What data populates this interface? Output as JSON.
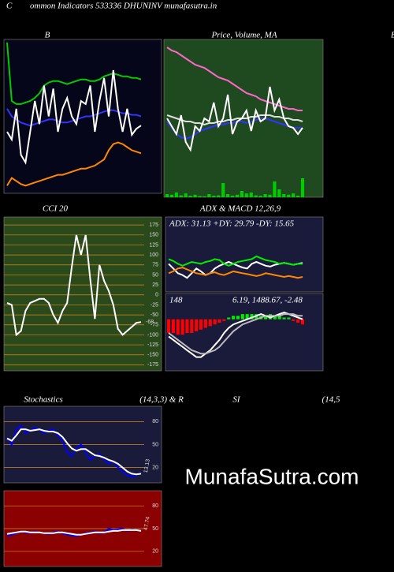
{
  "header": {
    "left": "C",
    "text": "ommon  Indicators 533336  DHUNINV munafasutra.in",
    "edge_label": "B"
  },
  "watermark": "MunafaSutra.com",
  "chart_data": [
    {
      "type": "line",
      "title": "B",
      "ylim": [
        0,
        100
      ],
      "series": [
        {
          "name": "Upper",
          "color": "#00cc00",
          "values": [
            98,
            60,
            58,
            58,
            59,
            60,
            62,
            65,
            70,
            72,
            73,
            73,
            72,
            71,
            72,
            73,
            74,
            74,
            73,
            73,
            74,
            76,
            77,
            78,
            77,
            76,
            76,
            75,
            75,
            74
          ]
        },
        {
          "name": "Middle",
          "color": "#3333ff",
          "values": [
            55,
            50,
            48,
            46,
            45,
            44,
            45,
            46,
            47,
            48,
            48,
            47,
            46,
            46,
            47,
            48,
            49,
            50,
            50,
            51,
            52,
            53,
            54,
            54,
            53,
            52,
            52,
            51,
            51,
            50
          ]
        },
        {
          "name": "Lower",
          "color": "#ff8800",
          "values": [
            5,
            10,
            8,
            6,
            5,
            6,
            7,
            8,
            9,
            10,
            11,
            12,
            12,
            13,
            14,
            15,
            16,
            16,
            17,
            18,
            20,
            22,
            28,
            32,
            33,
            32,
            30,
            28,
            27,
            26
          ]
        },
        {
          "name": "Price",
          "color": "#ffffff",
          "values": [
            40,
            35,
            55,
            25,
            20,
            40,
            60,
            45,
            70,
            50,
            68,
            40,
            55,
            62,
            50,
            45,
            60,
            58,
            70,
            40,
            60,
            75,
            50,
            80,
            55,
            40,
            55,
            38,
            42,
            44
          ]
        }
      ]
    },
    {
      "type": "line",
      "title": "Price, Volume, MA",
      "ylim": [
        0,
        100
      ],
      "y2lim": [
        0,
        500
      ],
      "series": [
        {
          "name": "MA Long",
          "color": "#ff66cc",
          "values": [
            95,
            93,
            92,
            90,
            88,
            86,
            84,
            83,
            82,
            80,
            78,
            76,
            75,
            74,
            72,
            70,
            68,
            66,
            65,
            64,
            62,
            61,
            60,
            59,
            58,
            57,
            56,
            56,
            55,
            55
          ]
        },
        {
          "name": "MA Mid",
          "color": "#dddddd",
          "values": [
            52,
            51,
            50,
            49,
            48,
            48,
            47,
            47,
            46,
            47,
            47,
            48,
            48,
            49,
            49,
            50,
            50,
            50,
            51,
            51,
            52,
            52,
            52,
            51,
            51,
            50,
            50,
            49,
            49,
            48
          ]
        },
        {
          "name": "MA Short",
          "color": "#3333ff",
          "values": [
            48,
            44,
            40,
            38,
            37,
            38,
            40,
            42,
            43,
            44,
            45,
            46,
            46,
            47,
            47,
            48,
            48,
            47,
            48,
            49,
            50,
            50,
            49,
            48,
            47,
            46,
            45,
            44,
            44,
            44
          ]
        },
        {
          "name": "Close",
          "color": "#ffffff",
          "values": [
            50,
            45,
            40,
            52,
            35,
            30,
            45,
            42,
            50,
            48,
            60,
            45,
            50,
            65,
            40,
            48,
            50,
            55,
            42,
            55,
            48,
            50,
            70,
            55,
            62,
            50,
            45,
            44,
            40,
            44
          ]
        },
        {
          "name": "Volume",
          "type": "bar",
          "axis": "y2",
          "color": "#00cc00",
          "values": [
            10,
            8,
            15,
            6,
            12,
            5,
            8,
            4,
            3,
            10,
            5,
            6,
            45,
            10,
            5,
            8,
            20,
            12,
            15,
            6,
            5,
            10,
            8,
            50,
            25,
            10,
            8,
            12,
            5,
            60
          ]
        }
      ]
    },
    {
      "type": "line",
      "title": "CCI 20",
      "ylim": [
        -190,
        195
      ],
      "grid": true,
      "yticks": [
        175,
        150,
        125,
        100,
        75,
        50,
        25,
        0,
        -25,
        -50,
        -75,
        -100,
        -125,
        -150,
        -175
      ],
      "series": [
        {
          "name": "CCI",
          "color": "#ffffff",
          "values": [
            -20,
            -25,
            -100,
            -90,
            -40,
            -20,
            -15,
            -10,
            -10,
            -20,
            -50,
            -70,
            -40,
            -20,
            70,
            150,
            100,
            150,
            40,
            -60,
            75,
            35,
            10,
            -25,
            -85,
            -100,
            -90,
            -80,
            -70,
            -68
          ]
        }
      ]
    },
    {
      "type": "line",
      "title": "ADX  & MACD 12,26,9",
      "ylim": [
        0,
        80
      ],
      "annotations": [
        "ADX: 31.13 +DY: 29.79 -DY: 15.65"
      ],
      "series": [
        {
          "name": "ADX",
          "color": "#ffffff",
          "values": [
            30,
            25,
            20,
            18,
            15,
            20,
            25,
            22,
            18,
            20,
            25,
            28,
            30,
            32,
            30,
            28,
            26,
            25,
            30,
            32,
            30,
            28,
            27,
            29,
            30,
            31,
            30,
            29,
            30,
            31
          ]
        },
        {
          "name": "+DI",
          "color": "#00ee00",
          "values": [
            35,
            33,
            30,
            28,
            30,
            32,
            31,
            30,
            32,
            33,
            35,
            34,
            30,
            28,
            30,
            32,
            33,
            34,
            35,
            38,
            36,
            34,
            33,
            32,
            30,
            31,
            30,
            29,
            30,
            30
          ]
        },
        {
          "name": "-DI",
          "color": "#ff8800",
          "values": [
            20,
            22,
            25,
            26,
            24,
            22,
            20,
            19,
            18,
            20,
            21,
            19,
            18,
            20,
            22,
            21,
            20,
            19,
            18,
            17,
            18,
            20,
            19,
            18,
            17,
            16,
            17,
            16,
            15,
            16
          ]
        }
      ]
    },
    {
      "type": "line",
      "ylim": [
        -30,
        15
      ],
      "annotations": [
        "148",
        "6.19,  1488.67,  -2.48"
      ],
      "series": [
        {
          "name": "Histogram",
          "type": "bar",
          "color": "#00ee00",
          "negative_color": "#ff0000",
          "values": [
            -8,
            -8,
            -9,
            -9,
            -8,
            -8,
            -7,
            -6,
            -5,
            -4,
            -3,
            -2,
            -1,
            1,
            2,
            2,
            3,
            3,
            3,
            3,
            2,
            2,
            3,
            2,
            2,
            1,
            1,
            -1,
            -2,
            -3
          ]
        },
        {
          "name": "MACD",
          "color": "#ffffff",
          "values": [
            -10,
            -12,
            -14,
            -16,
            -18,
            -20,
            -22,
            -22,
            -20,
            -18,
            -15,
            -12,
            -8,
            -5,
            -3,
            -2,
            -1,
            0,
            1,
            2,
            3,
            2,
            1,
            2,
            3,
            4,
            3,
            2,
            1,
            0
          ]
        },
        {
          "name": "Signal",
          "color": "#bbbbbb",
          "values": [
            -8,
            -10,
            -12,
            -14,
            -16,
            -18,
            -19,
            -20,
            -20,
            -19,
            -18,
            -16,
            -13,
            -10,
            -7,
            -5,
            -3,
            -2,
            -1,
            0,
            1,
            2,
            2,
            2,
            2,
            3,
            3,
            3,
            2,
            2
          ]
        }
      ]
    },
    {
      "type": "line",
      "title": "Stochastics",
      "subtitle": "(14,3,3) & R",
      "ylim": [
        0,
        100
      ],
      "grid": true,
      "yticks": [
        80,
        50,
        20
      ],
      "series": [
        {
          "name": "%K",
          "color": "#0000ff",
          "values": [
            60,
            50,
            70,
            75,
            65,
            68,
            72,
            70,
            65,
            68,
            70,
            62,
            55,
            40,
            35,
            45,
            50,
            40,
            30,
            35,
            38,
            30,
            25,
            28,
            20,
            15,
            10,
            8,
            10,
            13.13
          ]
        },
        {
          "name": "%D",
          "color": "#ffffff",
          "values": [
            58,
            55,
            62,
            70,
            70,
            68,
            69,
            70,
            68,
            67,
            67,
            65,
            60,
            52,
            45,
            42,
            44,
            44,
            40,
            36,
            35,
            33,
            30,
            28,
            25,
            20,
            15,
            12,
            11,
            12
          ]
        }
      ]
    },
    {
      "type": "line",
      "title": "SI",
      "subtitle": "(14,5",
      "ylim": [
        0,
        100
      ],
      "grid": true,
      "yticks": [
        80,
        50,
        20
      ],
      "series": [
        {
          "name": "RSI",
          "color": "#0000ff",
          "values": [
            40,
            42,
            44,
            46,
            45,
            44,
            46,
            45,
            44,
            43,
            45,
            46,
            44,
            42,
            41,
            40,
            42,
            44,
            45,
            46,
            44,
            45,
            50,
            48,
            49,
            50,
            47,
            49,
            48,
            47.74
          ]
        },
        {
          "name": "Signal",
          "color": "#ffffff",
          "values": [
            43,
            44,
            45,
            46,
            46,
            45,
            45,
            45,
            44,
            44,
            44,
            45,
            45,
            44,
            43,
            42,
            42,
            43,
            44,
            45,
            45,
            45,
            46,
            47,
            47,
            48,
            48,
            48,
            48,
            47
          ]
        }
      ]
    }
  ]
}
